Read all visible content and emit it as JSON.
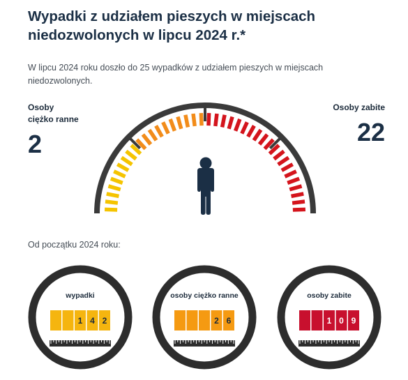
{
  "header": {
    "title_line1": "Wypadki z udziałem pieszych w miejscach",
    "title_line2": "niedozwolonych w lipcu 2024 r.*",
    "subtitle_line1": "W lipcu 2024 roku doszło do 25 wypadków z udziałem pieszych w miejscach",
    "subtitle_line2": "niedozwolonych."
  },
  "stats": {
    "injured_label_line1": "Osoby",
    "injured_label_line2": "ciężko ranne",
    "injured_value": "2",
    "killed_label": "Osoby zabite",
    "killed_value": "22"
  },
  "since_label": "Od początku 2024 roku:",
  "counters": [
    {
      "title": "wypadki",
      "digits": [
        "",
        "",
        "1",
        "4",
        "2"
      ],
      "color": "#f5b50f",
      "digit_color": "#1b2a3a"
    },
    {
      "title": "osoby ciężko ranne",
      "digits": [
        "",
        "",
        "",
        "2",
        "6"
      ],
      "color": "#f59a12",
      "digit_color": "#1b2a3a"
    },
    {
      "title": "osoby zabite",
      "digits": [
        "",
        "",
        "1",
        "0",
        "9"
      ],
      "color": "#c8102e",
      "digit_color": "#ffffff"
    }
  ],
  "colors": {
    "yellow": "#f5c400",
    "orange": "#f28c1a",
    "red": "#d4141c",
    "dark": "#1b2f45",
    "ring": "#2d2d2d"
  },
  "icons": {
    "center": "pedestrian-icon"
  }
}
